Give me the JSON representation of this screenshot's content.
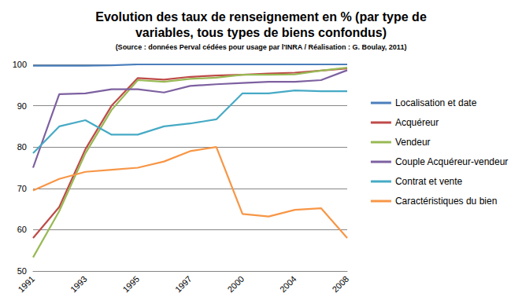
{
  "chart_data": {
    "type": "line",
    "title": "Evolution des taux de renseignement en % (par type de\nvariables, tous types de biens confondus)",
    "subtitle": "(Source : données Perval cédées pour usage par l'INRA / Réalisation : G. Boulay, 2011)",
    "categories": [
      "1991",
      null,
      "1993",
      null,
      "1995",
      null,
      "1997",
      null,
      "2000",
      null,
      "2004",
      null,
      "2008"
    ],
    "series": [
      {
        "name": "Localisation et date",
        "color": "#4a7ebb",
        "values": [
          99.7,
          99.7,
          99.7,
          99.8,
          100,
          100,
          100,
          100,
          100,
          100,
          100,
          100,
          100
        ]
      },
      {
        "name": "Acquéreur",
        "color": "#be4b48",
        "values": [
          58,
          65.5,
          79.5,
          90,
          96.7,
          96.3,
          97,
          97.3,
          97.5,
          97.8,
          98,
          98.5,
          99
        ]
      },
      {
        "name": "Vendeur",
        "color": "#98b954",
        "values": [
          53.3,
          64.5,
          78.5,
          89,
          96.2,
          95.8,
          96.5,
          96.8,
          97.5,
          97.5,
          97.6,
          98.5,
          99.2
        ]
      },
      {
        "name": "Couple Acquéreur-vendeur",
        "color": "#7d60a0",
        "values": [
          75,
          92.8,
          93,
          94,
          94,
          93.2,
          94.8,
          95.2,
          95.5,
          95.8,
          95.8,
          96.2,
          98.6
        ]
      },
      {
        "name": "Contrat et vente",
        "color": "#46aac5",
        "values": [
          78.5,
          85,
          86.5,
          83,
          83,
          85,
          85.7,
          86.7,
          93,
          93,
          93.7,
          93.5,
          93.5
        ]
      },
      {
        "name": "Caractéristiques du bien",
        "color": "#f79646",
        "values": [
          69.5,
          72.3,
          74,
          74.5,
          75,
          76.5,
          79,
          80,
          63.8,
          63.2,
          64.8,
          65.2,
          58
        ]
      }
    ],
    "ylim": [
      50,
      100
    ],
    "yticks": [
      50,
      60,
      70,
      80,
      90,
      100
    ],
    "grid": true,
    "legend": "right"
  }
}
